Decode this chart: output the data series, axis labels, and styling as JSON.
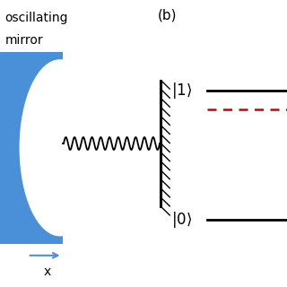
{
  "bg_color": "#ffffff",
  "label_b": "(b)",
  "mirror_color": "#4a90d9",
  "text_oscillating": "illating",
  "text_mirror": "mirror",
  "spring_coils": 11,
  "coil_amp": 0.022,
  "black_line_color": "#000000",
  "red_dash_color": "#cc0000",
  "font_size_state": 12,
  "font_size_label": 11,
  "font_size_text": 10
}
